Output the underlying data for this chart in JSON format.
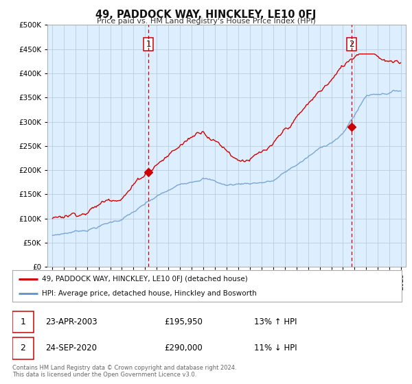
{
  "title": "49, PADDOCK WAY, HINCKLEY, LE10 0FJ",
  "subtitle": "Price paid vs. HM Land Registry's House Price Index (HPI)",
  "legend_line1": "49, PADDOCK WAY, HINCKLEY, LE10 0FJ (detached house)",
  "legend_line2": "HPI: Average price, detached house, Hinckley and Bosworth",
  "transaction1_date": "23-APR-2003",
  "transaction1_price": "£195,950",
  "transaction1_hpi": "13% ↑ HPI",
  "transaction2_date": "24-SEP-2020",
  "transaction2_price": "£290,000",
  "transaction2_hpi": "11% ↓ HPI",
  "footer_line1": "Contains HM Land Registry data © Crown copyright and database right 2024.",
  "footer_line2": "This data is licensed under the Open Government Licence v3.0.",
  "property_color": "#cc0000",
  "hpi_color": "#6699cc",
  "vline_color": "#cc0000",
  "marker1_date_num": 2003.29,
  "marker1_price": 195950,
  "marker2_date_num": 2020.73,
  "marker2_price": 290000,
  "xlim_low": 1994.6,
  "xlim_high": 2025.4,
  "ylim_low": 0,
  "ylim_high": 500000,
  "yticks": [
    0,
    50000,
    100000,
    150000,
    200000,
    250000,
    300000,
    350000,
    400000,
    450000,
    500000
  ],
  "background_color": "#ffffff",
  "plot_bg_color": "#ddeeff",
  "grid_color": "#bbccdd"
}
